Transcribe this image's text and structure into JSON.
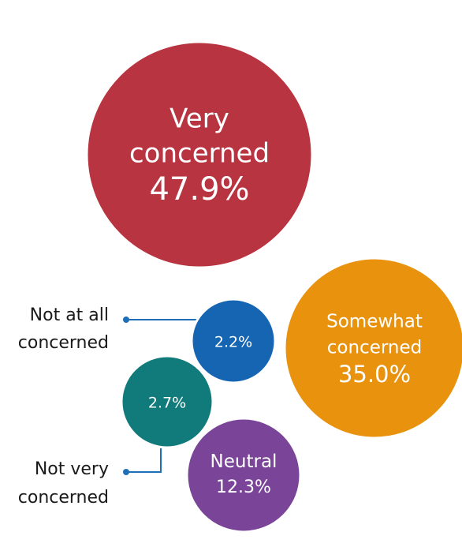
{
  "chart_data": {
    "type": "bubble",
    "title": "",
    "slices": [
      {
        "label_lines": [
          "Very",
          "concerned"
        ],
        "value": 47.9,
        "value_text": "47.9%",
        "color": "#b83440"
      },
      {
        "label_lines": [
          "Somewhat",
          "concerned"
        ],
        "value": 35.0,
        "value_text": "35.0%",
        "color": "#e8920e"
      },
      {
        "label_lines": [
          "Neutral"
        ],
        "value": 12.3,
        "value_text": "12.3%",
        "color": "#7a4598"
      },
      {
        "label_lines": [
          "Not very",
          "concerned"
        ],
        "value": 2.7,
        "value_text": "2.7%",
        "color": "#117a7a"
      },
      {
        "label_lines": [
          "Not at all",
          "concerned"
        ],
        "value": 2.2,
        "value_text": "2.2%",
        "color": "#1565b3"
      }
    ],
    "connector_color": "#1f6fb8"
  }
}
